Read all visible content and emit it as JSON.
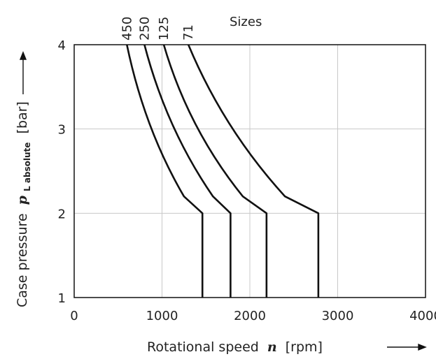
{
  "chart_data": {
    "type": "line",
    "xlabel_prefix": "Rotational speed",
    "xlabel_symbol": "n",
    "xlabel_unit": "[rpm]",
    "ylabel_prefix": "Case pressure",
    "ylabel_symbol": "p",
    "ylabel_subscript": "L absolute",
    "ylabel_unit": "[bar]",
    "xlim": [
      0,
      4000
    ],
    "ylim": [
      1,
      4
    ],
    "x_ticks": [
      "0",
      "1000",
      "2000",
      "3000",
      "4000"
    ],
    "x_tick_values": [
      0,
      1000,
      2000,
      3000,
      4000
    ],
    "y_ticks": [
      "1",
      "2",
      "3",
      "4"
    ],
    "y_tick_values": [
      1,
      2,
      3,
      4
    ],
    "grid": true,
    "legend_title": "Sizes",
    "series": [
      {
        "name": "450",
        "points": [
          [
            600,
            4
          ],
          [
            800,
            3
          ],
          [
            1250,
            2.2
          ],
          [
            1460,
            2
          ],
          [
            1460,
            1
          ]
        ]
      },
      {
        "name": "250",
        "points": [
          [
            800,
            4
          ],
          [
            1050,
            3
          ],
          [
            1580,
            2.2
          ],
          [
            1780,
            2
          ],
          [
            1780,
            1
          ]
        ]
      },
      {
        "name": "125",
        "points": [
          [
            1020,
            4
          ],
          [
            1300,
            3
          ],
          [
            1920,
            2.2
          ],
          [
            2190,
            2
          ],
          [
            2190,
            1
          ]
        ]
      },
      {
        "name": "71",
        "points": [
          [
            1300,
            4
          ],
          [
            1700,
            3
          ],
          [
            2400,
            2.2
          ],
          [
            2780,
            2
          ],
          [
            2780,
            1
          ]
        ]
      }
    ]
  }
}
